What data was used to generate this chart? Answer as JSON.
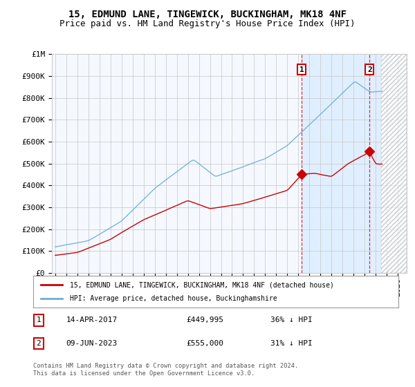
{
  "title": "15, EDMUND LANE, TINGEWICK, BUCKINGHAM, MK18 4NF",
  "subtitle": "Price paid vs. HM Land Registry's House Price Index (HPI)",
  "ylabel_ticks": [
    0,
    100000,
    200000,
    300000,
    400000,
    500000,
    600000,
    700000,
    800000,
    900000,
    1000000
  ],
  "ylabel_labels": [
    "£0",
    "£100K",
    "£200K",
    "£300K",
    "£400K",
    "£500K",
    "£600K",
    "£700K",
    "£800K",
    "£900K",
    "£1M"
  ],
  "ylim": [
    0,
    1000000
  ],
  "xlim_start": 1994.7,
  "xlim_end": 2026.8,
  "hpi_color": "#6baed6",
  "property_color": "#cc0000",
  "sale1_date": 2017.29,
  "sale1_price": 449995,
  "sale2_date": 2023.44,
  "sale2_price": 555000,
  "annotation1_label": "1",
  "annotation2_label": "2",
  "legend_property": "15, EDMUND LANE, TINGEWICK, BUCKINGHAM, MK18 4NF (detached house)",
  "legend_hpi": "HPI: Average price, detached house, Buckinghamshire",
  "table_row1": [
    "1",
    "14-APR-2017",
    "£449,995",
    "36% ↓ HPI"
  ],
  "table_row2": [
    "2",
    "09-JUN-2023",
    "£555,000",
    "31% ↓ HPI"
  ],
  "footer": "Contains HM Land Registry data © Crown copyright and database right 2024.\nThis data is licensed under the Open Government Licence v3.0.",
  "bg_color": "#ffffff",
  "chart_bg": "#f5f9ff",
  "highlight_bg": "#ddeeff",
  "grid_color": "#cccccc",
  "title_fontsize": 10,
  "subtitle_fontsize": 9,
  "axis_fontsize": 8,
  "hatch_start": 2024.5
}
